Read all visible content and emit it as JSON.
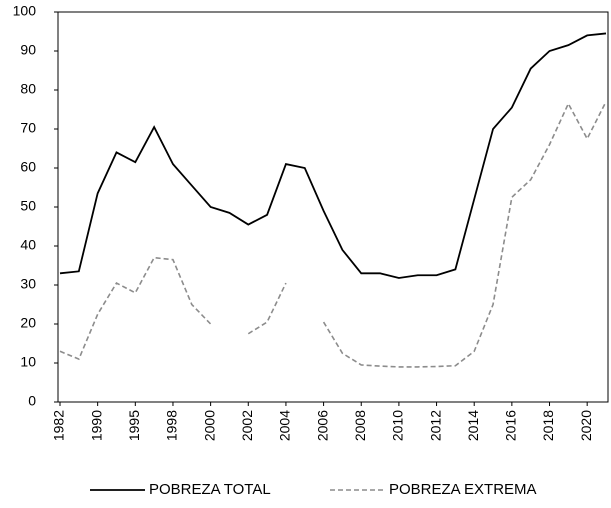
{
  "chart_data": {
    "type": "line",
    "categories": [
      "1982",
      null,
      "1990",
      null,
      "1995",
      null,
      "1998",
      null,
      "2000",
      null,
      "2002",
      null,
      "2004",
      null,
      "2006",
      null,
      "2008",
      null,
      "2010",
      null,
      "2012",
      null,
      "2014",
      null,
      "2016",
      null,
      "2018",
      null,
      "2020",
      null
    ],
    "series": [
      {
        "name": "POBREZA TOTAL",
        "color": "#000000",
        "dash": false,
        "values": [
          33,
          33.5,
          53.5,
          64,
          61.5,
          70.5,
          61,
          55.5,
          50,
          48.5,
          45.5,
          48,
          61,
          60,
          49,
          39,
          33,
          33,
          31.8,
          32.5,
          32.5,
          34,
          52,
          70,
          75.5,
          85.5,
          90,
          91.5,
          94,
          94.5
        ]
      },
      {
        "name": "POBREZA EXTREMA",
        "color": "#8c8c8c",
        "dash": true,
        "values": [
          13,
          11,
          22.5,
          30.5,
          28,
          37,
          36.5,
          25,
          20,
          null,
          17.5,
          20.5,
          30.5,
          null,
          20.5,
          12.5,
          9.5,
          9.2,
          9,
          9,
          9.1,
          9.3,
          13,
          25,
          52.5,
          57,
          66,
          76.5,
          67.5,
          77
        ]
      }
    ],
    "ylim": [
      0,
      100
    ],
    "yticks": [
      0,
      10,
      20,
      30,
      40,
      50,
      60,
      70,
      80,
      90,
      100
    ],
    "grid": false,
    "legend": "bottom"
  }
}
